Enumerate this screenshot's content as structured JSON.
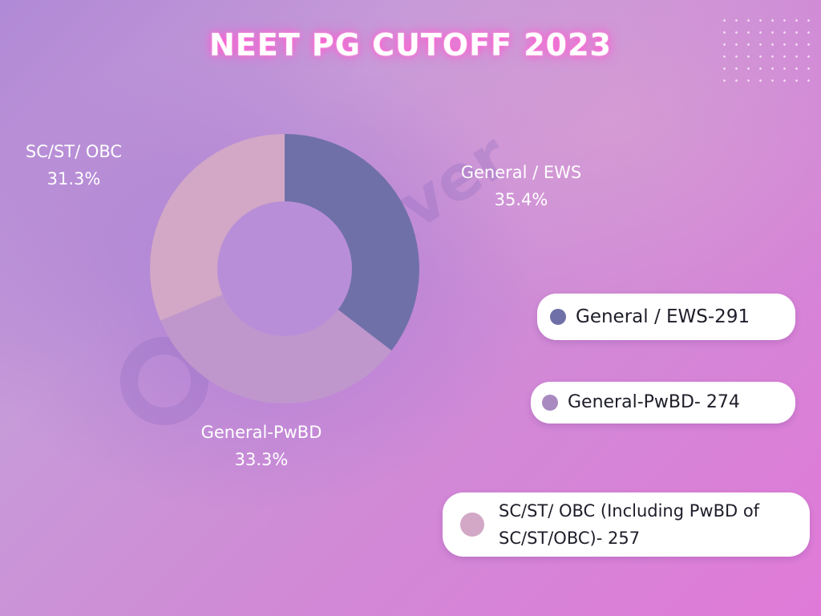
{
  "chart_data": {
    "type": "pie",
    "title": "NEET PG CUTOFF 2023",
    "slices": [
      {
        "label": "General / EWS",
        "percent_label": "35.4%",
        "value": 35.4,
        "color": "#7070a8"
      },
      {
        "label": "General-PwBD",
        "percent_label": "33.3%",
        "value": 33.3,
        "color": "#bf97cc"
      },
      {
        "label": "SC/ST/ OBC",
        "percent_label": "31.3%",
        "value": 31.3,
        "color": "#d2a8c6"
      }
    ],
    "hole_color": "#b98ed8",
    "legend": [
      {
        "text": "General / EWS-291",
        "color": "#7070a8"
      },
      {
        "text": "General-PwBD- 274",
        "color": "#a98ac0"
      },
      {
        "text": "SC/ST/ OBC (Including PwBD of SC/ST/OBC)- 257",
        "color": "#d2a8c6"
      }
    ]
  },
  "watermark": "Edufever"
}
